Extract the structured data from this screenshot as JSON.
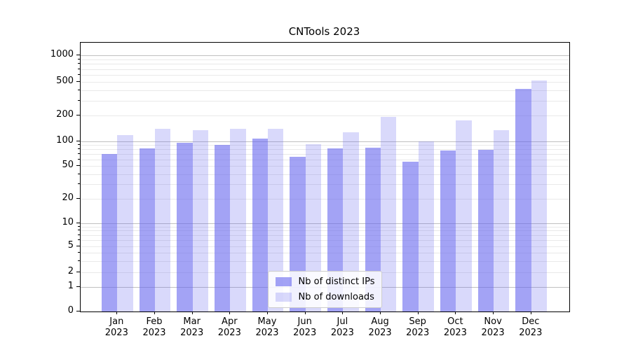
{
  "chart_data": {
    "type": "bar",
    "title": "CNTools 2023",
    "categories": [
      "Jan 2023",
      "Feb 2023",
      "Mar 2023",
      "Apr 2023",
      "May 2023",
      "Jun 2023",
      "Jul 2023",
      "Aug 2023",
      "Sep 2023",
      "Oct 2023",
      "Nov 2023",
      "Dec 2023"
    ],
    "series": [
      {
        "name": "Nb of distinct IPs",
        "color": "rgba(102,102,238,0.60)",
        "values": [
          70,
          82,
          95,
          91,
          108,
          65,
          81,
          84,
          56,
          77,
          78,
          415
        ]
      },
      {
        "name": "Nb of downloads",
        "color": "rgba(102,102,238,0.25)",
        "values": [
          118,
          141,
          136,
          141,
          139,
          92,
          128,
          195,
          100,
          177,
          135,
          520
        ]
      }
    ],
    "xlabel": "",
    "ylabel": "",
    "yscale": "symlog",
    "yticks": [
      0,
      1,
      2,
      5,
      10,
      20,
      50,
      100,
      200,
      500,
      1000
    ],
    "ylim": [
      0,
      1450
    ],
    "grid": true,
    "legend_position": "lower center",
    "colors": {
      "axis": "#000000",
      "major_grid": "#bfbfbf",
      "minor_grid": "#e9e9e9"
    }
  }
}
